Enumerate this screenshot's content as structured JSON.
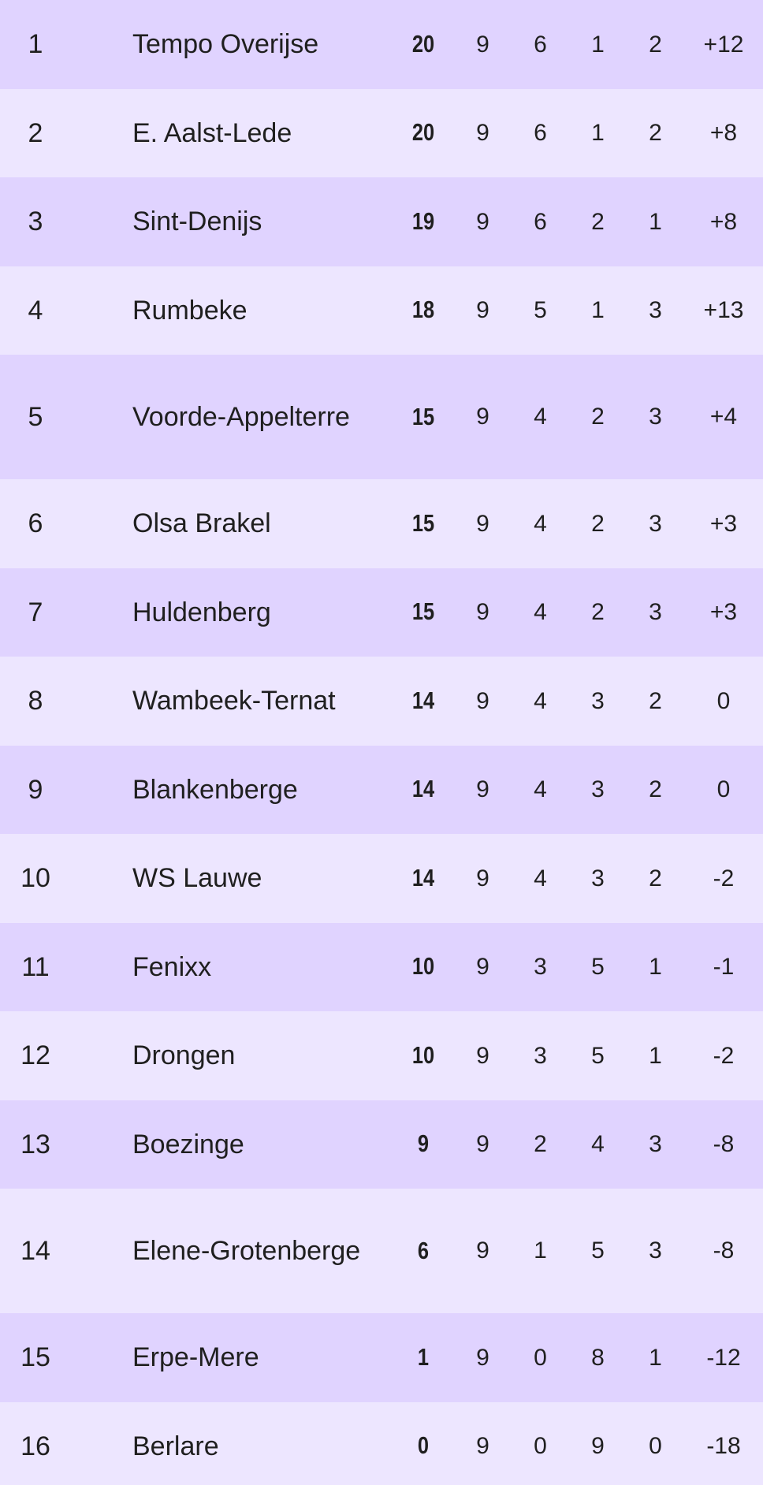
{
  "standings": {
    "rows": [
      {
        "pos": "1",
        "team": "Tempo Overijse",
        "pts": "20",
        "played": "9",
        "won": "6",
        "drawn": "1",
        "lost": "2",
        "gd": "+12"
      },
      {
        "pos": "2",
        "team": "E. Aalst-Lede",
        "pts": "20",
        "played": "9",
        "won": "6",
        "drawn": "1",
        "lost": "2",
        "gd": "+8"
      },
      {
        "pos": "3",
        "team": "Sint-Denijs",
        "pts": "19",
        "played": "9",
        "won": "6",
        "drawn": "2",
        "lost": "1",
        "gd": "+8"
      },
      {
        "pos": "4",
        "team": "Rumbeke",
        "pts": "18",
        "played": "9",
        "won": "5",
        "drawn": "1",
        "lost": "3",
        "gd": "+13"
      },
      {
        "pos": "5",
        "team": "Voorde-Appelterre",
        "pts": "15",
        "played": "9",
        "won": "4",
        "drawn": "2",
        "lost": "3",
        "gd": "+4"
      },
      {
        "pos": "6",
        "team": "Olsa Brakel",
        "pts": "15",
        "played": "9",
        "won": "4",
        "drawn": "2",
        "lost": "3",
        "gd": "+3"
      },
      {
        "pos": "7",
        "team": "Huldenberg",
        "pts": "15",
        "played": "9",
        "won": "4",
        "drawn": "2",
        "lost": "3",
        "gd": "+3"
      },
      {
        "pos": "8",
        "team": "Wambeek-Ternat",
        "pts": "14",
        "played": "9",
        "won": "4",
        "drawn": "3",
        "lost": "2",
        "gd": "0"
      },
      {
        "pos": "9",
        "team": "Blankenberge",
        "pts": "14",
        "played": "9",
        "won": "4",
        "drawn": "3",
        "lost": "2",
        "gd": "0"
      },
      {
        "pos": "10",
        "team": "WS Lauwe",
        "pts": "14",
        "played": "9",
        "won": "4",
        "drawn": "3",
        "lost": "2",
        "gd": "-2"
      },
      {
        "pos": "11",
        "team": "Fenixx",
        "pts": "10",
        "played": "9",
        "won": "3",
        "drawn": "5",
        "lost": "1",
        "gd": "-1"
      },
      {
        "pos": "12",
        "team": "Drongen",
        "pts": "10",
        "played": "9",
        "won": "3",
        "drawn": "5",
        "lost": "1",
        "gd": "-2"
      },
      {
        "pos": "13",
        "team": "Boezinge",
        "pts": "9",
        "played": "9",
        "won": "2",
        "drawn": "4",
        "lost": "3",
        "gd": "-8"
      },
      {
        "pos": "14",
        "team": "Elene-Grotenberge",
        "pts": "6",
        "played": "9",
        "won": "1",
        "drawn": "5",
        "lost": "3",
        "gd": "-8"
      },
      {
        "pos": "15",
        "team": "Erpe-Mere",
        "pts": "1",
        "played": "9",
        "won": "0",
        "drawn": "8",
        "lost": "1",
        "gd": "-12"
      },
      {
        "pos": "16",
        "team": "Berlare",
        "pts": "0",
        "played": "9",
        "won": "0",
        "drawn": "9",
        "lost": "0",
        "gd": "-18"
      }
    ]
  }
}
